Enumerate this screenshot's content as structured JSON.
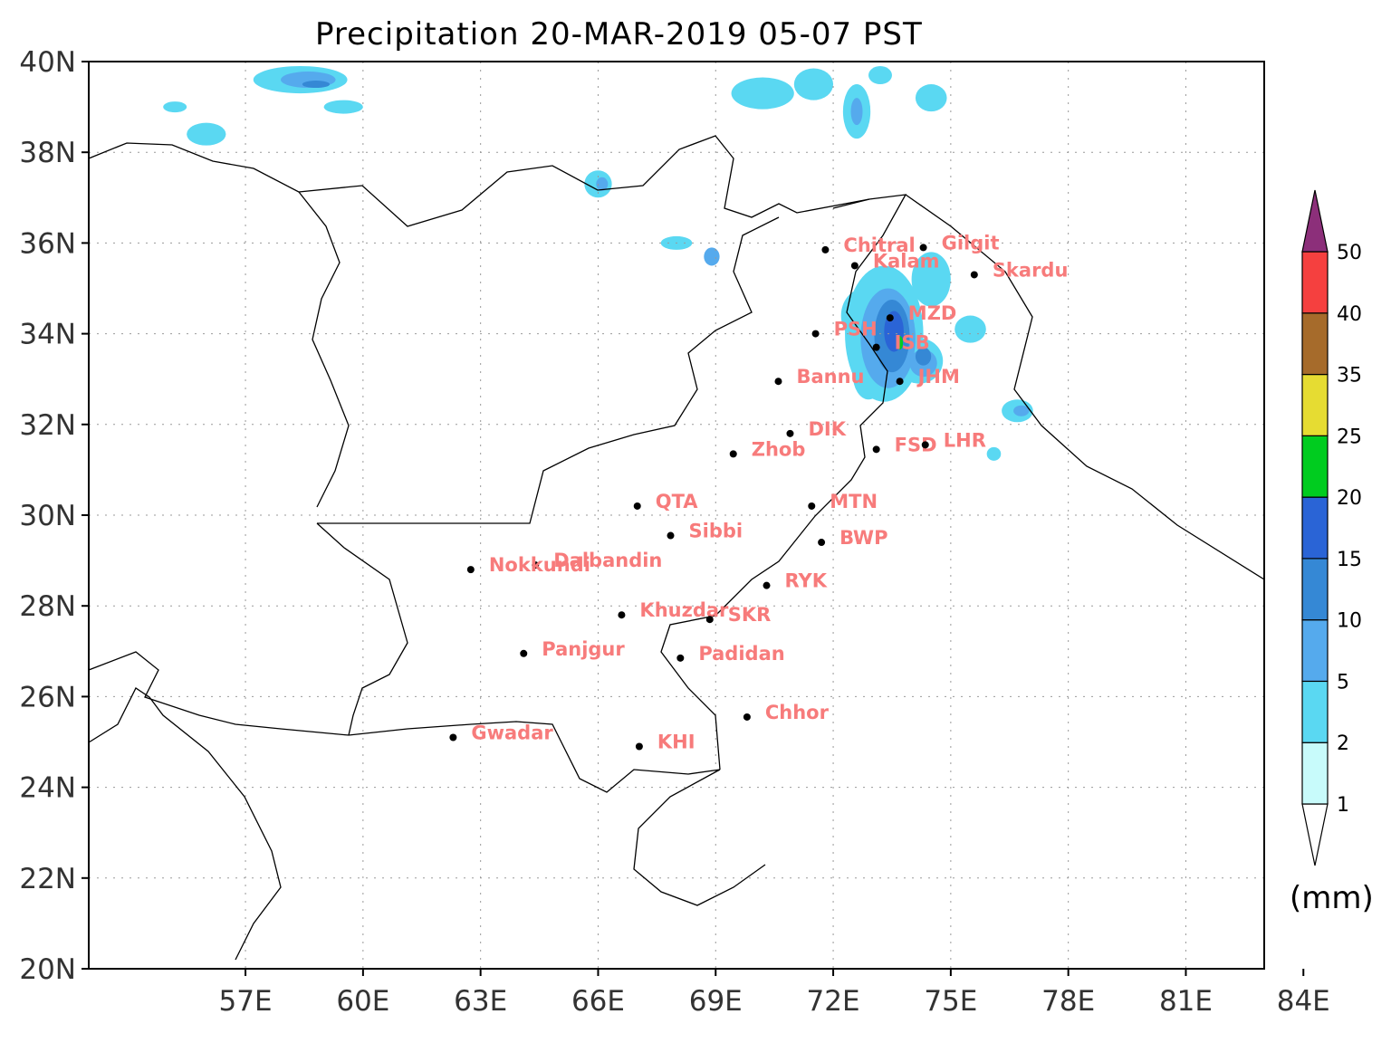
{
  "title": "Precipitation 20-MAR-2019 05-07 PST",
  "map": {
    "lon_range": [
      53,
      83
    ],
    "lat_range": [
      20,
      40
    ],
    "lat_ticks": [
      {
        "value": 40,
        "label": "40N"
      },
      {
        "value": 38,
        "label": "38N"
      },
      {
        "value": 36,
        "label": "36N"
      },
      {
        "value": 34,
        "label": "34N"
      },
      {
        "value": 32,
        "label": "32N"
      },
      {
        "value": 30,
        "label": "30N"
      },
      {
        "value": 28,
        "label": "28N"
      },
      {
        "value": 26,
        "label": "26N"
      },
      {
        "value": 24,
        "label": "24N"
      },
      {
        "value": 22,
        "label": "22N"
      },
      {
        "value": 20,
        "label": "20N"
      }
    ],
    "lon_ticks": [
      {
        "value": 57,
        "label": "57E"
      },
      {
        "value": 60,
        "label": "60E"
      },
      {
        "value": 63,
        "label": "63E"
      },
      {
        "value": 66,
        "label": "66E"
      },
      {
        "value": 69,
        "label": "69E"
      },
      {
        "value": 72,
        "label": "72E"
      },
      {
        "value": 75,
        "label": "75E"
      },
      {
        "value": 78,
        "label": "78E"
      },
      {
        "value": 81,
        "label": "81E"
      },
      {
        "value": 84,
        "label": "84E"
      }
    ],
    "grid": "dotted",
    "cities": [
      {
        "name": "Chitral",
        "lon": 71.8,
        "lat": 35.85
      },
      {
        "name": "Gilgit",
        "lon": 74.3,
        "lat": 35.9
      },
      {
        "name": "Kalam",
        "lon": 72.55,
        "lat": 35.5
      },
      {
        "name": "Skardu",
        "lon": 75.6,
        "lat": 35.3
      },
      {
        "name": "MZD",
        "lon": 73.45,
        "lat": 34.35
      },
      {
        "name": "PSH",
        "lon": 71.55,
        "lat": 34.0
      },
      {
        "name": "ISB",
        "lon": 73.1,
        "lat": 33.7
      },
      {
        "name": "Bannu",
        "lon": 70.6,
        "lat": 32.95
      },
      {
        "name": "JHM",
        "lon": 73.7,
        "lat": 32.95
      },
      {
        "name": "DIK",
        "lon": 70.9,
        "lat": 31.8
      },
      {
        "name": "Zhob",
        "lon": 69.45,
        "lat": 31.35
      },
      {
        "name": "FSD",
        "lon": 73.1,
        "lat": 31.45
      },
      {
        "name": "LHR",
        "lon": 74.35,
        "lat": 31.55
      },
      {
        "name": "QTA",
        "lon": 67.0,
        "lat": 30.2
      },
      {
        "name": "MTN",
        "lon": 71.45,
        "lat": 30.2
      },
      {
        "name": "Sibbi",
        "lon": 67.85,
        "lat": 29.55
      },
      {
        "name": "BWP",
        "lon": 71.7,
        "lat": 29.4
      },
      {
        "name": "Dalbandin",
        "lon": 64.4,
        "lat": 28.9
      },
      {
        "name": "Nokkundi",
        "lon": 62.75,
        "lat": 28.8
      },
      {
        "name": "RYK",
        "lon": 70.3,
        "lat": 28.45
      },
      {
        "name": "Khuzdar",
        "lon": 66.6,
        "lat": 27.8
      },
      {
        "name": "SKR",
        "lon": 68.85,
        "lat": 27.7
      },
      {
        "name": "Panjgur",
        "lon": 64.1,
        "lat": 26.95
      },
      {
        "name": "Padidan",
        "lon": 68.1,
        "lat": 26.85
      },
      {
        "name": "Chhor",
        "lon": 69.8,
        "lat": 25.55
      },
      {
        "name": "Gwadar",
        "lon": 62.3,
        "lat": 25.1
      },
      {
        "name": "KHI",
        "lon": 67.05,
        "lat": 24.9
      }
    ]
  },
  "colorbar": {
    "levels": [
      {
        "label": "1",
        "color": "#c8fbfb"
      },
      {
        "label": "2",
        "color": "#5ad8f2"
      },
      {
        "label": "5",
        "color": "#55aaed"
      },
      {
        "label": "10",
        "color": "#3588d5"
      },
      {
        "label": "15",
        "color": "#2a64d6"
      },
      {
        "label": "20",
        "color": "#00cc1f"
      },
      {
        "label": "25",
        "color": "#e6dc32"
      },
      {
        "label": "35",
        "color": "#a66b2b"
      },
      {
        "label": "40",
        "color": "#f5403f"
      },
      {
        "label": "50",
        "color": "#8c2f7a"
      }
    ],
    "unit": "(mm)"
  },
  "precip_blobs": [
    {
      "lon": 73.3,
      "lat": 34.0,
      "rx": 1.0,
      "ry": 1.5,
      "level": 1
    },
    {
      "lon": 73.4,
      "lat": 33.9,
      "rx": 0.7,
      "ry": 1.1,
      "level": 2
    },
    {
      "lon": 73.5,
      "lat": 33.95,
      "rx": 0.45,
      "ry": 0.8,
      "level": 3
    },
    {
      "lon": 73.55,
      "lat": 34.05,
      "rx": 0.25,
      "ry": 0.45,
      "level": 4
    },
    {
      "lon": 73.7,
      "lat": 33.8,
      "rx": 0.08,
      "ry": 0.15,
      "level": 5
    },
    {
      "lon": 74.2,
      "lat": 33.4,
      "rx": 0.6,
      "ry": 0.5,
      "level": 1
    },
    {
      "lon": 74.3,
      "lat": 33.35,
      "rx": 0.35,
      "ry": 0.3,
      "level": 2
    },
    {
      "lon": 74.3,
      "lat": 33.5,
      "rx": 0.2,
      "ry": 0.2,
      "level": 3
    },
    {
      "lon": 72.8,
      "lat": 34.4,
      "rx": 0.6,
      "ry": 0.6,
      "level": 1
    },
    {
      "lon": 72.9,
      "lat": 33.1,
      "rx": 0.4,
      "ry": 0.55,
      "level": 1
    },
    {
      "lon": 74.5,
      "lat": 35.2,
      "rx": 0.5,
      "ry": 0.6,
      "level": 1
    },
    {
      "lon": 75.5,
      "lat": 34.1,
      "rx": 0.4,
      "ry": 0.3,
      "level": 1
    },
    {
      "lon": 76.7,
      "lat": 32.3,
      "rx": 0.4,
      "ry": 0.25,
      "level": 1
    },
    {
      "lon": 76.8,
      "lat": 32.3,
      "rx": 0.2,
      "ry": 0.12,
      "level": 2
    },
    {
      "lon": 76.1,
      "lat": 31.35,
      "rx": 0.18,
      "ry": 0.15,
      "level": 1
    },
    {
      "lon": 58.4,
      "lat": 39.6,
      "rx": 1.2,
      "ry": 0.3,
      "level": 1
    },
    {
      "lon": 58.6,
      "lat": 39.6,
      "rx": 0.7,
      "ry": 0.18,
      "level": 2
    },
    {
      "lon": 58.8,
      "lat": 39.5,
      "rx": 0.35,
      "ry": 0.08,
      "level": 3
    },
    {
      "lon": 59.5,
      "lat": 39.0,
      "rx": 0.5,
      "ry": 0.15,
      "level": 1
    },
    {
      "lon": 55.2,
      "lat": 39.0,
      "rx": 0.3,
      "ry": 0.12,
      "level": 1
    },
    {
      "lon": 56.0,
      "lat": 38.4,
      "rx": 0.5,
      "ry": 0.25,
      "level": 1
    },
    {
      "lon": 66.0,
      "lat": 37.3,
      "rx": 0.35,
      "ry": 0.3,
      "level": 1
    },
    {
      "lon": 66.1,
      "lat": 37.3,
      "rx": 0.15,
      "ry": 0.15,
      "level": 2
    },
    {
      "lon": 68.0,
      "lat": 36.0,
      "rx": 0.4,
      "ry": 0.15,
      "level": 1
    },
    {
      "lon": 68.9,
      "lat": 35.7,
      "rx": 0.2,
      "ry": 0.2,
      "level": 2
    },
    {
      "lon": 70.2,
      "lat": 39.3,
      "rx": 0.8,
      "ry": 0.35,
      "level": 1
    },
    {
      "lon": 71.5,
      "lat": 39.5,
      "rx": 0.5,
      "ry": 0.35,
      "level": 1
    },
    {
      "lon": 72.6,
      "lat": 38.9,
      "rx": 0.35,
      "ry": 0.6,
      "level": 1
    },
    {
      "lon": 72.6,
      "lat": 38.9,
      "rx": 0.15,
      "ry": 0.3,
      "level": 2
    },
    {
      "lon": 74.5,
      "lat": 39.2,
      "rx": 0.4,
      "ry": 0.3,
      "level": 1
    },
    {
      "lon": 73.2,
      "lat": 39.7,
      "rx": 0.3,
      "ry": 0.2,
      "level": 1
    }
  ]
}
